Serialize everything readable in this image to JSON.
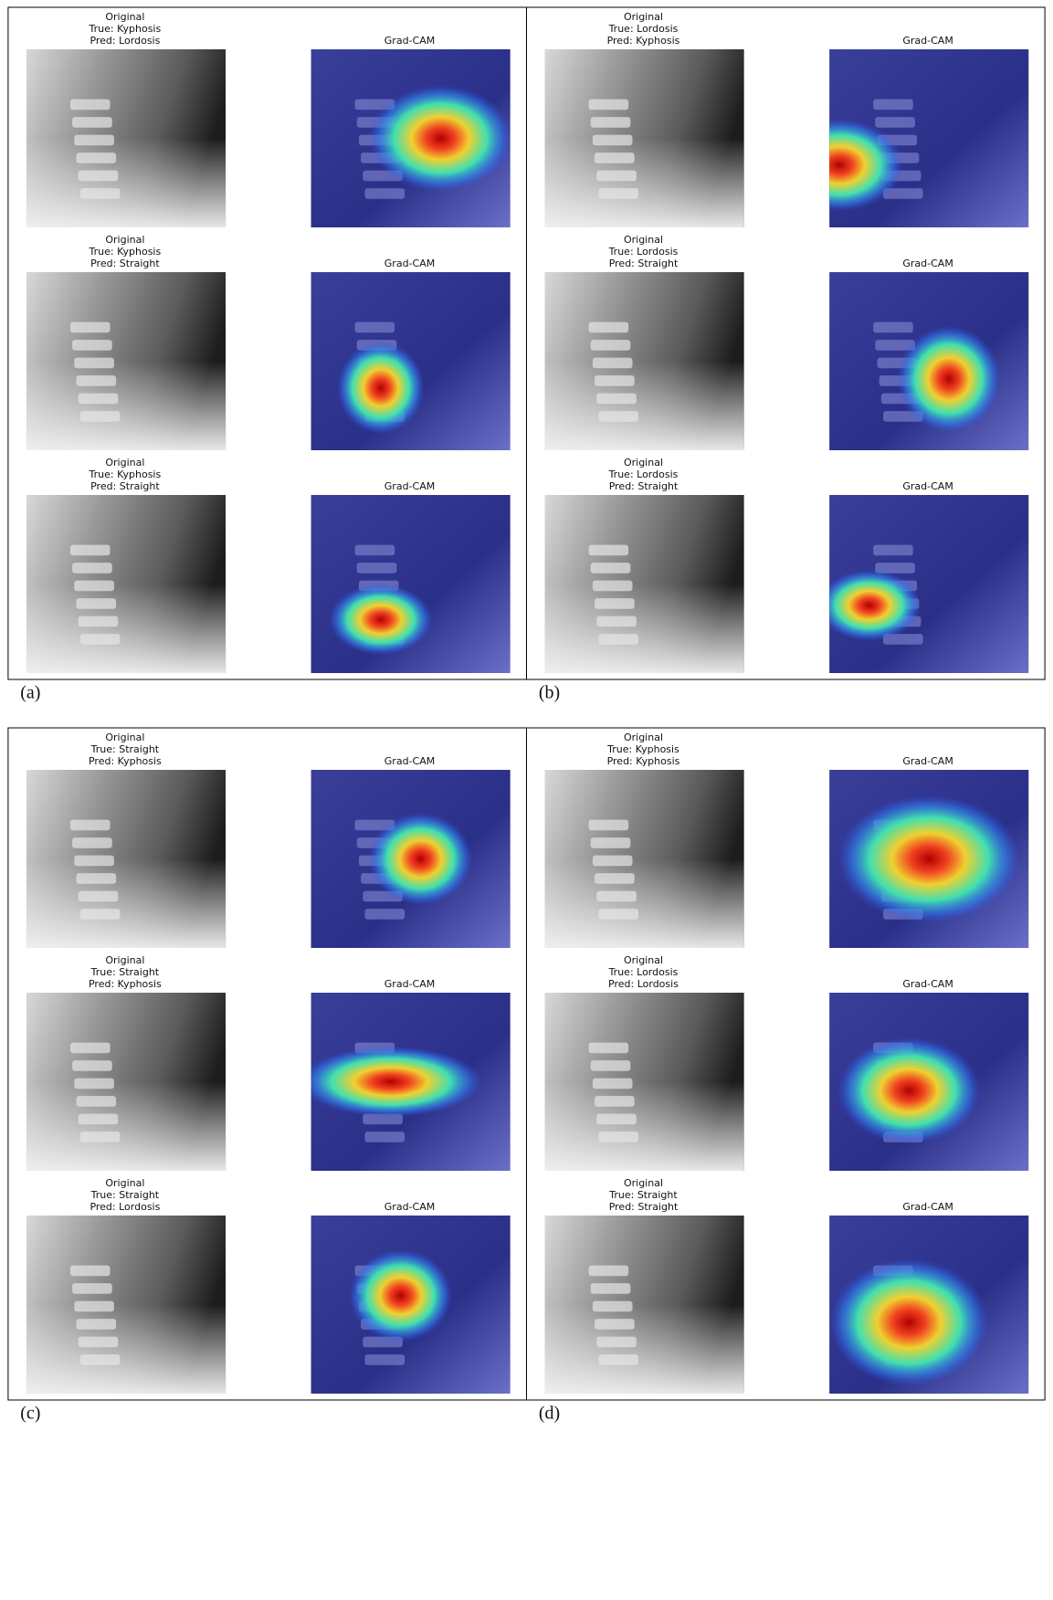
{
  "panels": [
    {
      "label": "(a)",
      "rows": [
        {
          "original": "Original",
          "true_label": "True: Kyphosis",
          "pred": "Pred: Lordosis",
          "gradcam": "Grad-CAM"
        },
        {
          "original": "Original",
          "true_label": "True: Kyphosis",
          "pred": "Pred: Straight",
          "gradcam": "Grad-CAM"
        },
        {
          "original": "Original",
          "true_label": "True: Kyphosis",
          "pred": "Pred: Straight",
          "gradcam": "Grad-CAM"
        }
      ]
    },
    {
      "label": "(b)",
      "rows": [
        {
          "original": "Original",
          "true_label": "True: Lordosis",
          "pred": "Pred: Kyphosis",
          "gradcam": "Grad-CAM"
        },
        {
          "original": "Original",
          "true_label": "True: Lordosis",
          "pred": "Pred: Straight",
          "gradcam": "Grad-CAM"
        },
        {
          "original": "Original",
          "true_label": "True: Lordosis",
          "pred": "Pred: Straight",
          "gradcam": "Grad-CAM"
        }
      ]
    },
    {
      "label": "(c)",
      "rows": [
        {
          "original": "Original",
          "true_label": "True: Straight",
          "pred": "Pred: Kyphosis",
          "gradcam": "Grad-CAM"
        },
        {
          "original": "Original",
          "true_label": "True: Straight",
          "pred": "Pred: Kyphosis",
          "gradcam": "Grad-CAM"
        },
        {
          "original": "Original",
          "true_label": "True: Straight",
          "pred": "Pred: Lordosis",
          "gradcam": "Grad-CAM"
        }
      ]
    },
    {
      "label": "(d)",
      "rows": [
        {
          "original": "Original",
          "true_label": "True: Kyphosis",
          "pred": "Pred: Kyphosis",
          "gradcam": "Grad-CAM"
        },
        {
          "original": "Original",
          "true_label": "True: Lordosis",
          "pred": "Pred: Lordosis",
          "gradcam": "Grad-CAM"
        },
        {
          "original": "Original",
          "true_label": "True: Straight",
          "pred": "Pred: Straight",
          "gradcam": "Grad-CAM"
        }
      ]
    }
  ]
}
